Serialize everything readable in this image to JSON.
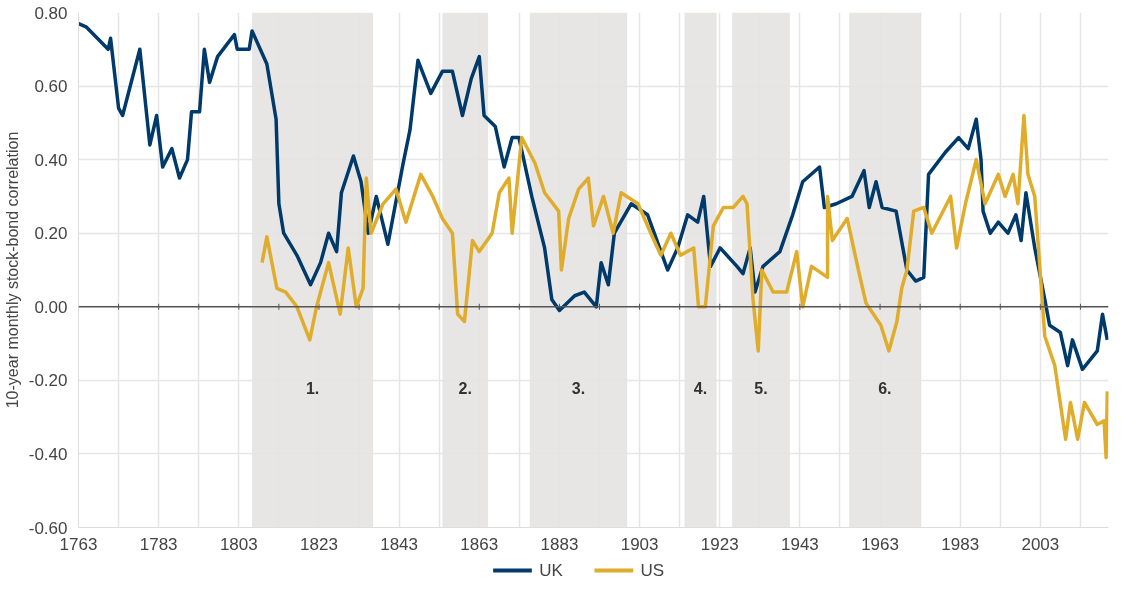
{
  "chart_data": {
    "type": "line",
    "ylabel": "10-year monthly stock-bond correlation",
    "xlim": [
      1763,
      2020
    ],
    "ylim": [
      -0.6,
      0.8
    ],
    "xticks": [
      1763,
      {
        "value": 1773,
        "label": null
      },
      1783,
      {
        "value": 1793,
        "label": null
      },
      1803,
      {
        "value": 1813,
        "label": null
      },
      1823,
      {
        "value": 1833,
        "label": null
      },
      1843,
      {
        "value": 1853,
        "label": null
      },
      1863,
      {
        "value": 1873,
        "label": null
      },
      1883,
      {
        "value": 1893,
        "label": null
      },
      1903,
      {
        "value": 1913,
        "label": null
      },
      1923,
      {
        "value": 1933,
        "label": null
      },
      1943,
      {
        "value": 1953,
        "label": null
      },
      1963,
      {
        "value": 1973,
        "label": null
      },
      1983,
      {
        "value": 1993,
        "label": null
      },
      2003,
      {
        "value": 2013,
        "label": null
      }
    ],
    "yticks": [
      {
        "value": -0.6,
        "label": "-0.60"
      },
      {
        "value": -0.4,
        "label": "-0.40"
      },
      {
        "value": -0.2,
        "label": "-0.20"
      },
      {
        "value": 0,
        "label": "0.00"
      },
      {
        "value": 0.2,
        "label": "0.20"
      },
      {
        "value": 0.4,
        "label": "0.40"
      },
      {
        "value": 0.6,
        "label": "0.60"
      },
      {
        "value": 0.8,
        "label": "0.80"
      }
    ],
    "grid": true,
    "legend": "bottom",
    "line_style": "solid",
    "marker": "none",
    "ref_lines": [
      {
        "axis": "y",
        "value": 0,
        "label": null,
        "color": "#555555"
      }
    ],
    "bands": [
      {
        "axis": "x",
        "from": 1806.3,
        "to": 1836.5,
        "label": "1.",
        "color": "#e4e3e2"
      },
      {
        "axis": "x",
        "from": 1853.8,
        "to": 1865.2,
        "label": "2.",
        "color": "#e4e3e2"
      },
      {
        "axis": "x",
        "from": 1875.6,
        "to": 1899.9,
        "label": "3.",
        "color": "#e4e3e2"
      },
      {
        "axis": "x",
        "from": 1914.2,
        "to": 1922.2,
        "label": "4.",
        "color": "#e4e3e2"
      },
      {
        "axis": "x",
        "from": 1926.1,
        "to": 1940.5,
        "label": "5.",
        "color": "#e4e3e2"
      },
      {
        "axis": "x",
        "from": 1955.3,
        "to": 1973.1,
        "label": "6.",
        "color": "#e4e3e2"
      }
    ],
    "series": [
      {
        "name": "UK",
        "color": "#003a6b",
        "x": [
          1763,
          1765,
          1770.4,
          1771,
          1773,
          1774,
          1778.3,
          1780.8,
          1782.5,
          1784,
          1786.3,
          1788.2,
          1790.2,
          1791.2,
          1793.2,
          1794.4,
          1795.7,
          1797.7,
          1801.9,
          1802.6,
          1805.6,
          1806.3,
          1810,
          1812.3,
          1813,
          1814.2,
          1817.5,
          1820.9,
          1823.4,
          1825.4,
          1827.4,
          1828.6,
          1831.6,
          1833.5,
          1835.3,
          1837.3,
          1840.2,
          1844,
          1845.7,
          1847.7,
          1850.9,
          1853.8,
          1856.3,
          1858.8,
          1861,
          1863,
          1864.2,
          1867,
          1869.2,
          1871.2,
          1872.9,
          1876.1,
          1879.3,
          1881.1,
          1883,
          1886.8,
          1889.2,
          1892.2,
          1893.4,
          1895.2,
          1896.7,
          1900.9,
          1905,
          1910,
          1912.5,
          1915,
          1917.5,
          1919,
          1920.7,
          1923.1,
          1927.3,
          1928.8,
          1930.6,
          1931.8,
          1933.8,
          1938,
          1941.2,
          1943.7,
          1947.9,
          1949.1,
          1952.1,
          1956,
          1959,
          1960.3,
          1962,
          1963.5,
          1967,
          1969.7,
          1971.9,
          1973.9,
          1975.1,
          1979.3,
          1982.6,
          1985,
          1987,
          1988.2,
          1988.7,
          1990.5,
          1992.5,
          1994.9,
          1996.9,
          1998.2,
          1999.4,
          2001.6,
          2004.1,
          2005.3,
          2008,
          2009.8,
          2011,
          2013.5,
          2017.2,
          2018.5,
          2019.7
        ],
        "values": [
          0.77,
          0.76,
          0.7,
          0.73,
          0.54,
          0.52,
          0.7,
          0.44,
          0.52,
          0.38,
          0.43,
          0.35,
          0.4,
          0.53,
          0.53,
          0.7,
          0.61,
          0.68,
          0.74,
          0.7,
          0.7,
          0.75,
          0.66,
          0.51,
          0.28,
          0.2,
          0.14,
          0.06,
          0.12,
          0.2,
          0.15,
          0.31,
          0.41,
          0.34,
          0.2,
          0.3,
          0.17,
          0.39,
          0.48,
          0.67,
          0.58,
          0.64,
          0.64,
          0.52,
          0.62,
          0.68,
          0.52,
          0.49,
          0.38,
          0.46,
          0.46,
          0.3,
          0.16,
          0.02,
          -0.01,
          0.03,
          0.04,
          0.0,
          0.12,
          0.06,
          0.2,
          0.28,
          0.25,
          0.1,
          0.16,
          0.25,
          0.23,
          0.3,
          0.11,
          0.16,
          0.11,
          0.09,
          0.16,
          0.04,
          0.11,
          0.15,
          0.25,
          0.34,
          0.38,
          0.27,
          0.28,
          0.3,
          0.37,
          0.27,
          0.34,
          0.27,
          0.26,
          0.1,
          0.07,
          0.08,
          0.36,
          0.42,
          0.46,
          0.43,
          0.51,
          0.4,
          0.26,
          0.2,
          0.23,
          0.2,
          0.25,
          0.18,
          0.31,
          0.16,
          0.02,
          -0.05,
          -0.07,
          -0.16,
          -0.09,
          -0.17,
          -0.12,
          -0.02,
          -0.09
        ]
      },
      {
        "name": "US",
        "color": "#e0ac2b",
        "x": [
          1808.8,
          1810,
          1812.5,
          1814.7,
          1817.5,
          1820.7,
          1822.4,
          1825.4,
          1828.3,
          1830.3,
          1832.3,
          1834,
          1834.8,
          1836,
          1839,
          1842.2,
          1844.7,
          1848.4,
          1851.4,
          1853.8,
          1856.3,
          1857.6,
          1859.3,
          1861.3,
          1863,
          1866.2,
          1868,
          1870.4,
          1871.2,
          1873.6,
          1876.9,
          1879.3,
          1882.8,
          1883.5,
          1885.3,
          1887.8,
          1890.2,
          1891.5,
          1894,
          1896.4,
          1898.4,
          1902.6,
          1905.8,
          1908.3,
          1910.8,
          1913.2,
          1916.5,
          1917.7,
          1919.4,
          1921.4,
          1923.9,
          1926.4,
          1928.8,
          1929.8,
          1931.3,
          1932.6,
          1933.5,
          1936.3,
          1939.7,
          1942.2,
          1943.7,
          1945.9,
          1949.9,
          1949.9,
          1951.1,
          1954.8,
          1957.8,
          1959.5,
          1963.2,
          1965.2,
          1967.2,
          1968.4,
          1969.7,
          1971.4,
          1973.9,
          1975.9,
          1980.6,
          1982.1,
          1984.3,
          1987,
          1989.2,
          1992.5,
          1994.2,
          1996.2,
          1997.4,
          1998.9,
          1999.9,
          2001.6,
          2004.1,
          2006.6,
          2009.3,
          2010.5,
          2012.3,
          2014,
          2017.2,
          2018.9,
          2019.4,
          2019.7
        ],
        "values": [
          0.12,
          0.19,
          0.05,
          0.04,
          0.0,
          -0.09,
          0.0,
          0.12,
          -0.02,
          0.16,
          0.0,
          0.05,
          0.35,
          0.2,
          0.28,
          0.32,
          0.23,
          0.36,
          0.3,
          0.24,
          0.2,
          -0.02,
          -0.04,
          0.18,
          0.15,
          0.2,
          0.31,
          0.35,
          0.2,
          0.46,
          0.39,
          0.31,
          0.26,
          0.1,
          0.24,
          0.32,
          0.35,
          0.22,
          0.3,
          0.2,
          0.31,
          0.28,
          0.2,
          0.14,
          0.2,
          0.14,
          0.16,
          0.0,
          0.0,
          0.22,
          0.27,
          0.27,
          0.3,
          0.28,
          0.02,
          -0.12,
          0.1,
          0.04,
          0.04,
          0.15,
          0.0,
          0.11,
          0.08,
          0.3,
          0.18,
          0.24,
          0.09,
          0.01,
          -0.05,
          -0.12,
          -0.04,
          0.05,
          0.1,
          0.26,
          0.27,
          0.2,
          0.3,
          0.16,
          0.28,
          0.4,
          0.28,
          0.36,
          0.3,
          0.36,
          0.28,
          0.52,
          0.36,
          0.3,
          -0.08,
          -0.16,
          -0.36,
          -0.26,
          -0.36,
          -0.26,
          -0.32,
          -0.31,
          -0.41,
          -0.23
        ]
      }
    ]
  }
}
